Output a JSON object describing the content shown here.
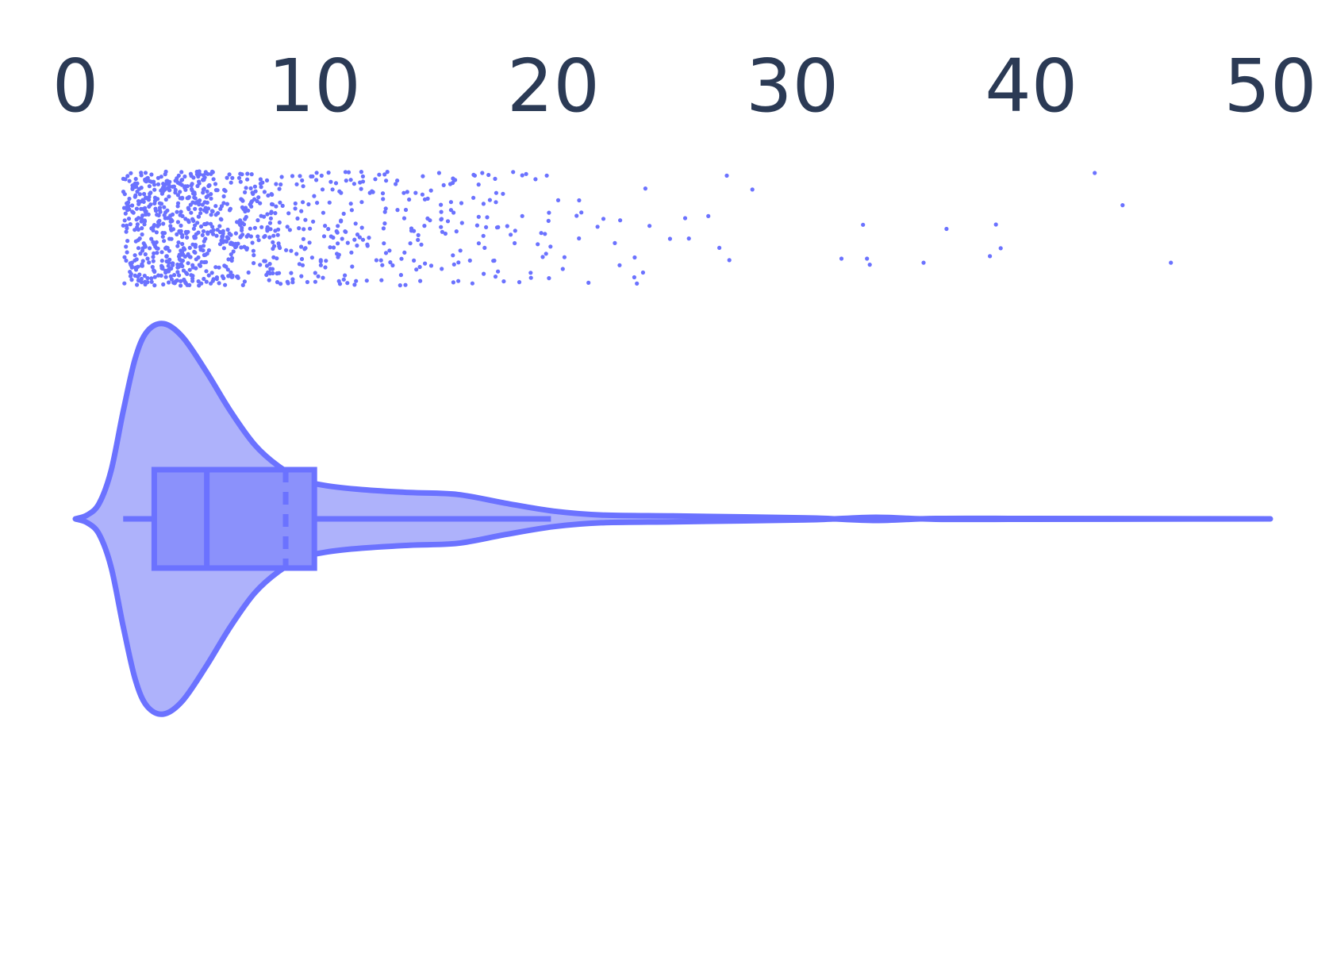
{
  "chart_data": {
    "type": "violin",
    "orientation": "horizontal",
    "xlim": [
      0,
      50
    ],
    "ticks": [
      {
        "value": 0,
        "label": "0"
      },
      {
        "value": 10,
        "label": "10"
      },
      {
        "value": 20,
        "label": "20"
      },
      {
        "value": 30,
        "label": "30"
      },
      {
        "value": 40,
        "label": "40"
      },
      {
        "value": 50,
        "label": "50"
      }
    ],
    "color": "#6b72ff",
    "fill_color": "#aeb2fb",
    "box_fill_color": "#8b91fb",
    "axis_text_color": "#2b3a55",
    "box": {
      "whisker_low": 2.0,
      "q1": 3.3,
      "median": 5.5,
      "mean": 8.8,
      "q3": 10.0,
      "whisker_high": 19.9
    },
    "density": [
      {
        "x": 0,
        "half_width": 0.0
      },
      {
        "x": 0.5,
        "half_width": 0.02
      },
      {
        "x": 1.0,
        "half_width": 0.08
      },
      {
        "x": 1.5,
        "half_width": 0.25
      },
      {
        "x": 2.0,
        "half_width": 0.55
      },
      {
        "x": 2.5,
        "half_width": 0.82
      },
      {
        "x": 3.0,
        "half_width": 0.96
      },
      {
        "x": 3.7,
        "half_width": 1.0
      },
      {
        "x": 4.5,
        "half_width": 0.93
      },
      {
        "x": 5.5,
        "half_width": 0.75
      },
      {
        "x": 6.5,
        "half_width": 0.55
      },
      {
        "x": 7.5,
        "half_width": 0.38
      },
      {
        "x": 8.5,
        "half_width": 0.27
      },
      {
        "x": 9.5,
        "half_width": 0.2
      },
      {
        "x": 10.5,
        "half_width": 0.17
      },
      {
        "x": 12.0,
        "half_width": 0.15
      },
      {
        "x": 14.0,
        "half_width": 0.135
      },
      {
        "x": 16.0,
        "half_width": 0.125
      },
      {
        "x": 18.0,
        "half_width": 0.08
      },
      {
        "x": 20.0,
        "half_width": 0.04
      },
      {
        "x": 22.0,
        "half_width": 0.02
      },
      {
        "x": 25.0,
        "half_width": 0.015
      },
      {
        "x": 28.0,
        "half_width": 0.01
      },
      {
        "x": 31.0,
        "half_width": 0.004
      },
      {
        "x": 33.5,
        "half_width": -0.008
      },
      {
        "x": 36.0,
        "half_width": 0.002
      },
      {
        "x": 40.0,
        "half_width": 0.002
      },
      {
        "x": 45.0,
        "half_width": 0.001
      },
      {
        "x": 50.0,
        "half_width": 0.0
      }
    ],
    "points": {
      "count": 1000,
      "x_min": 2.0,
      "x_max": 49.7
    }
  }
}
